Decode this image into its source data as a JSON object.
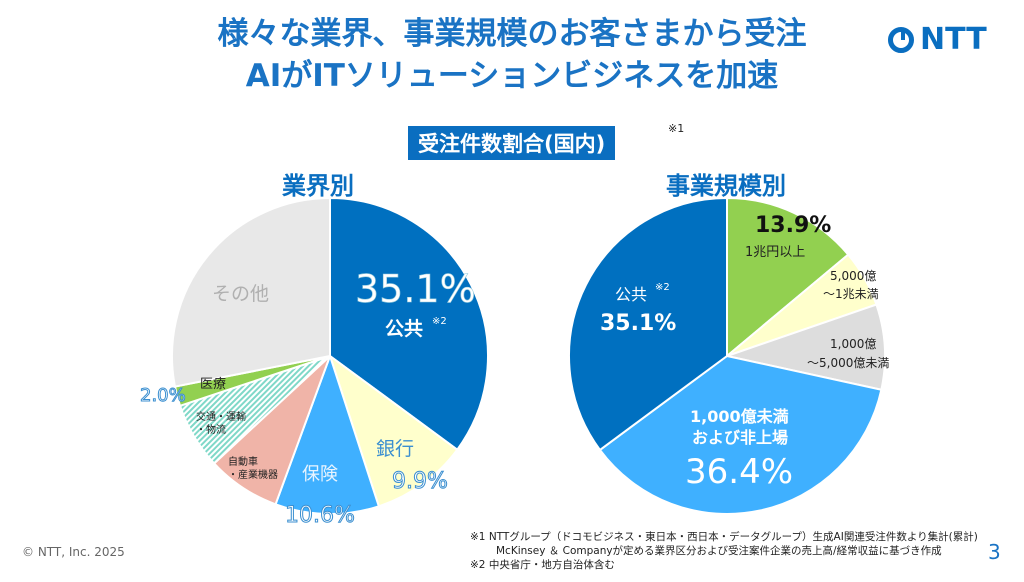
{
  "header": {
    "title_line1": "様々な業界、事業規模のお客さまから受注",
    "title_line2": "AIがITソリューションビジネスを加速",
    "logo_text": "NTT"
  },
  "badge": {
    "label": "受注件数割合(国内)",
    "note_mark": "※1"
  },
  "chart_data": [
    {
      "type": "pie",
      "title": "業界別",
      "start": "top",
      "direction": "clockwise",
      "slices": [
        {
          "label": "公共",
          "note": "※2",
          "value": 35.1,
          "value_label": "35.1%",
          "color": "#0070c0"
        },
        {
          "label": "銀行",
          "value": 9.9,
          "value_label": "9.9%",
          "color": "#ffffcc"
        },
        {
          "label": "保険",
          "value": 10.6,
          "value_label": "10.6%",
          "color": "#3fb0ff"
        },
        {
          "label": "自動車・産業機器",
          "value": 7.5,
          "color": "#f0b4a8"
        },
        {
          "label": "交通・運輸・物流",
          "value": 6.8,
          "color": "#c8f0e8"
        },
        {
          "label": "医療",
          "value": 2.0,
          "value_label": "2.0%",
          "color": "#92d050"
        },
        {
          "label": "その他",
          "value": 28.1,
          "color": "#e8e8e8"
        }
      ]
    },
    {
      "type": "pie",
      "title": "事業規模別",
      "start": "top",
      "direction": "clockwise",
      "slices": [
        {
          "label": "1兆円以上",
          "value": 13.9,
          "value_label": "13.9%",
          "color": "#92d050"
        },
        {
          "label": "5,000億〜1兆未満",
          "value": 5.8,
          "color": "#ffffcc"
        },
        {
          "label": "1,000億〜5,000億未満",
          "value": 8.7,
          "color": "#dddddd"
        },
        {
          "label": "1,000億未満および非上場",
          "value": 36.4,
          "value_label": "36.4%",
          "color": "#3fb0ff"
        },
        {
          "label": "公共",
          "note": "※2",
          "value": 35.1,
          "value_label": "35.1%",
          "color": "#0070c0"
        }
      ]
    }
  ],
  "labels": {
    "l_pub": "公共",
    "l_pub_note": "※2",
    "l_bank": "銀行",
    "l_ins": "保険",
    "l_auto1": "自動車",
    "l_auto2": "・産業機器",
    "l_trans1": "交通・運輸",
    "l_trans2": "・物流",
    "l_med": "医療",
    "l_other": "その他",
    "r_big1": "1兆円以上",
    "r_mid1": "5,000億",
    "r_mid2": "〜1兆未満",
    "r_sm1": "1,000億",
    "r_sm2": "〜5,000億未満",
    "r_small1": "1,000億未満",
    "r_small2": "および非上場",
    "r_pub": "公共",
    "r_pub_note": "※2"
  },
  "footer": {
    "copyright": "© NTT, Inc.  2025",
    "page": "3",
    "note1a": "※1  NTTグループ（ドコモビジネス・東日本・西日本・データグループ）生成AI関連受注件数より集計(累計)",
    "note1b": "McKinsey ＆ Companyが定める業界区分および受注案件企業の売上高/経常収益に基づき作成",
    "note2": "※2  中央省庁・地方自治体含む"
  }
}
